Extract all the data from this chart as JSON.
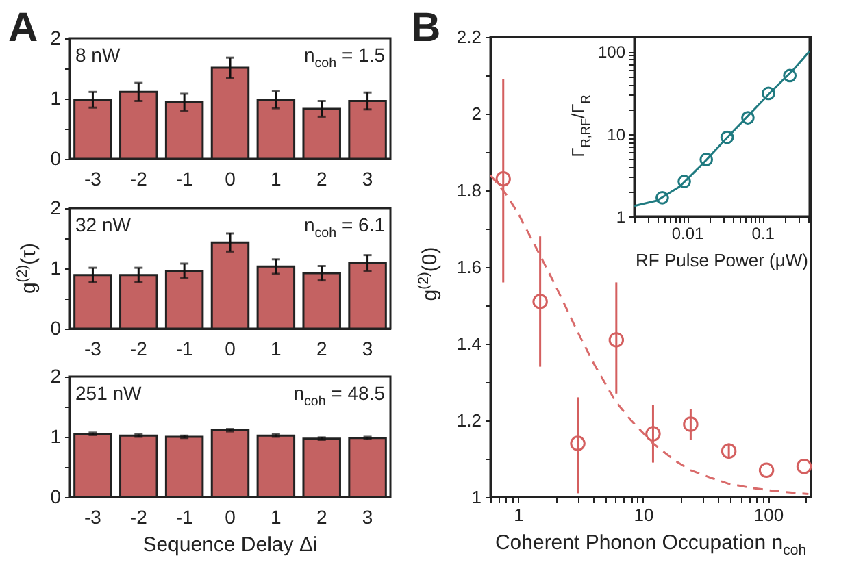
{
  "chart_data": [
    {
      "type": "bar",
      "title": "A",
      "categories": [
        "-3",
        "-2",
        "-1",
        "0",
        "1",
        "2",
        "3"
      ],
      "values": [
        0.98,
        1.11,
        0.94,
        1.51,
        0.98,
        0.83,
        0.96
      ],
      "errors": [
        0.13,
        0.15,
        0.14,
        0.17,
        0.14,
        0.13,
        0.14
      ],
      "color": "#c46262",
      "ylim": [
        0,
        2
      ],
      "yticks": [
        0,
        {
          "value": 0.5,
          "label": null
        },
        1,
        {
          "value": 1.5,
          "label": null
        },
        2
      ],
      "annotations": [
        "8 nW",
        "n$_{coh}$ = 1.5"
      ]
    },
    {
      "type": "bar",
      "ylabel": "g$^{(2)}$(τ)",
      "categories": [
        "-3",
        "-2",
        "-1",
        "0",
        "1",
        "2",
        "3"
      ],
      "values": [
        0.89,
        0.89,
        0.96,
        1.43,
        1.03,
        0.92,
        1.09
      ],
      "errors": [
        0.12,
        0.12,
        0.12,
        0.15,
        0.12,
        0.12,
        0.13
      ],
      "color": "#c46262",
      "ylim": [
        0,
        2
      ],
      "yticks": [
        0,
        {
          "value": 0.5,
          "label": null
        },
        1,
        {
          "value": 1.5,
          "label": null
        },
        2
      ],
      "annotations": [
        "32 nW",
        "n$_{coh}$ = 6.1"
      ]
    },
    {
      "type": "bar",
      "xlabel": "Sequence Delay Δi",
      "categories": [
        "-3",
        "-2",
        "-1",
        "0",
        "1",
        "2",
        "3"
      ],
      "values": [
        1.05,
        1.02,
        1.0,
        1.11,
        1.02,
        0.97,
        0.98
      ],
      "errors": [
        0.02,
        0.02,
        0.02,
        0.02,
        0.02,
        0.02,
        0.02
      ],
      "color": "#c46262",
      "ylim": [
        0,
        2
      ],
      "yticks": [
        0,
        {
          "value": 0.5,
          "label": null
        },
        1,
        {
          "value": 1.5,
          "label": null
        },
        2
      ],
      "annotations": [
        "251 nW",
        "n$_{coh}$ = 48.5"
      ]
    },
    {
      "type": "scatter",
      "title": "B",
      "xlabel": "Coherent Phonon Occupation n$_{coh}$",
      "ylabel": "g$^{(2)}$(0)",
      "log": "x",
      "x": [
        0.76,
        1.5,
        3.0,
        6.1,
        12,
        24,
        48.5,
        97,
        194
      ],
      "xlim": [
        0.6,
        220
      ],
      "xticks": [
        {
          "value": 0.6,
          "label": null
        },
        {
          "value": 0.7,
          "label": null
        },
        {
          "value": 0.8,
          "label": null
        },
        {
          "value": 0.9,
          "label": null
        },
        1,
        {
          "value": 2,
          "label": null
        },
        {
          "value": 3,
          "label": null
        },
        {
          "value": 4,
          "label": null
        },
        {
          "value": 5,
          "label": null
        },
        {
          "value": 6,
          "label": null
        },
        {
          "value": 7,
          "label": null
        },
        {
          "value": 8,
          "label": null
        },
        {
          "value": 9,
          "label": null
        },
        10,
        {
          "value": 20,
          "label": null
        },
        {
          "value": 30,
          "label": null
        },
        {
          "value": 40,
          "label": null
        },
        {
          "value": 50,
          "label": null
        },
        {
          "value": 60,
          "label": null
        },
        {
          "value": 70,
          "label": null
        },
        {
          "value": 80,
          "label": null
        },
        {
          "value": 90,
          "label": null
        },
        100,
        {
          "value": 200,
          "label": null
        }
      ],
      "ylim": [
        1,
        2.2
      ],
      "yticks": [
        1,
        {
          "value": 1.1,
          "label": null
        },
        1.2,
        {
          "value": 1.3,
          "label": null
        },
        1.4,
        {
          "value": 1.5,
          "label": null
        },
        1.6,
        {
          "value": 1.7,
          "label": null
        },
        1.8,
        {
          "value": 1.9,
          "label": null
        },
        2,
        {
          "value": 2.1,
          "label": null
        },
        2.2
      ],
      "series": [
        {
          "marker": "circle",
          "color": "#d45f5f",
          "values": [
            1.83,
            1.51,
            1.14,
            1.41,
            1.165,
            1.19,
            1.12,
            1.07,
            1.08
          ],
          "errors": [
            [
              1.56,
              2.09
            ],
            [
              1.34,
              1.68
            ],
            [
              1.01,
              1.26
            ],
            [
              1.27,
              1.56
            ],
            [
              1.09,
              1.24
            ],
            [
              1.15,
              1.23
            ],
            [
              1.1,
              1.14
            ],
            null,
            null
          ]
        },
        {
          "type": "line",
          "line_style": "dashed",
          "color": "#d96a6a",
          "x": [
            0.6,
            0.8,
            1,
            1.5,
            2,
            3,
            4,
            6,
            8,
            12,
            18,
            24,
            35,
            48,
            70,
            100,
            150,
            210
          ],
          "values": [
            1.84,
            1.79,
            1.74,
            1.63,
            1.55,
            1.43,
            1.35,
            1.25,
            1.2,
            1.14,
            1.095,
            1.07,
            1.05,
            1.035,
            1.025,
            1.018,
            1.012,
            1.008
          ]
        }
      ]
    },
    {
      "type": "scatter",
      "xlabel": "RF Pulse Power (μW)",
      "ylabel": "Γ$_{R,RF}$/Γ$_{R}$",
      "log": "xy",
      "x": [
        0.0047,
        0.0092,
        0.018,
        0.034,
        0.064,
        0.12,
        0.23
      ],
      "xlim": [
        0.002,
        0.42
      ],
      "xticks": [
        {
          "value": 0.002,
          "label": null
        },
        {
          "value": 0.003,
          "label": null
        },
        {
          "value": 0.004,
          "label": null
        },
        {
          "value": 0.005,
          "label": null
        },
        {
          "value": 0.006,
          "label": null
        },
        {
          "value": 0.007,
          "label": null
        },
        {
          "value": 0.008,
          "label": null
        },
        {
          "value": 0.009,
          "label": null
        },
        0.01,
        {
          "value": 0.02,
          "label": null
        },
        {
          "value": 0.03,
          "label": null
        },
        {
          "value": 0.04,
          "label": null
        },
        {
          "value": 0.05,
          "label": null
        },
        {
          "value": 0.06,
          "label": null
        },
        {
          "value": 0.07,
          "label": null
        },
        {
          "value": 0.08,
          "label": null
        },
        {
          "value": 0.09,
          "label": null
        },
        0.1,
        {
          "value": 0.2,
          "label": null
        },
        {
          "value": 0.3,
          "label": null
        },
        {
          "value": 0.4,
          "label": null
        }
      ],
      "ylim": [
        1,
        150
      ],
      "yticks": [
        1,
        {
          "value": 2,
          "label": null
        },
        {
          "value": 3,
          "label": null
        },
        {
          "value": 4,
          "label": null
        },
        {
          "value": 5,
          "label": null
        },
        {
          "value": 6,
          "label": null
        },
        {
          "value": 7,
          "label": null
        },
        {
          "value": 8,
          "label": null
        },
        {
          "value": 9,
          "label": null
        },
        10,
        {
          "value": 20,
          "label": null
        },
        {
          "value": 30,
          "label": null
        },
        {
          "value": 40,
          "label": null
        },
        {
          "value": 50,
          "label": null
        },
        {
          "value": 60,
          "label": null
        },
        {
          "value": 70,
          "label": null
        },
        {
          "value": 80,
          "label": null
        },
        {
          "value": 90,
          "label": null
        },
        100
      ],
      "series": [
        {
          "marker": "circle",
          "color": "#1f7a80",
          "values": [
            1.68,
            2.65,
            4.9,
            9.1,
            15.7,
            31,
            51
          ]
        },
        {
          "type": "line",
          "line_style": "solid",
          "color": "#1f7a80",
          "x": [
            0.002,
            0.004,
            0.008,
            0.016,
            0.032,
            0.064,
            0.128,
            0.256,
            0.42
          ],
          "values": [
            1.34,
            1.55,
            2.3,
            4.3,
            8.5,
            16.5,
            32,
            60,
            101
          ]
        }
      ]
    }
  ]
}
